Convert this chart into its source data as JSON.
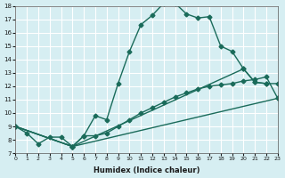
{
  "xlabel": "Humidex (Indice chaleur)",
  "ylabel": "",
  "bg_color": "#d6eef2",
  "grid_color": "#ffffff",
  "line_color": "#1a6b5a",
  "xlim": [
    0,
    23
  ],
  "ylim": [
    7,
    18
  ],
  "xticks": [
    0,
    1,
    2,
    3,
    4,
    5,
    6,
    7,
    8,
    9,
    10,
    11,
    12,
    13,
    14,
    15,
    16,
    17,
    18,
    19,
    20,
    21,
    22,
    23
  ],
  "yticks": [
    7,
    8,
    9,
    10,
    11,
    12,
    13,
    14,
    15,
    16,
    17,
    18
  ],
  "line1_x": [
    0,
    1,
    2,
    3,
    4,
    5,
    6,
    7,
    8,
    9,
    10,
    11,
    12,
    13,
    14,
    15,
    16,
    17,
    18,
    19,
    20,
    21,
    22
  ],
  "line1_y": [
    9,
    8.5,
    7.7,
    8.2,
    8.2,
    7.5,
    8.3,
    9.8,
    9.5,
    12.2,
    14.6,
    16.6,
    17.3,
    18.2,
    18.2,
    17.4,
    17.1,
    17.2,
    15.0,
    14.6,
    13.3,
    12.3,
    12.2
  ],
  "line2_x": [
    0,
    5,
    23
  ],
  "line2_y": [
    9,
    7.5,
    11.1
  ],
  "line3_x": [
    0,
    5,
    6,
    7,
    8,
    9,
    10,
    11,
    12,
    13,
    14,
    15,
    16,
    17,
    18,
    19,
    20,
    21,
    22,
    23
  ],
  "line3_y": [
    9,
    7.5,
    8.3,
    8.3,
    8.5,
    9.0,
    9.5,
    10.0,
    10.4,
    10.8,
    11.2,
    11.5,
    11.8,
    12.0,
    12.1,
    12.2,
    12.4,
    12.5,
    12.7,
    11.1
  ],
  "line4_x": [
    0,
    5,
    20,
    21,
    22,
    23
  ],
  "line4_y": [
    9,
    7.5,
    13.3,
    12.3,
    12.2,
    12.2
  ]
}
